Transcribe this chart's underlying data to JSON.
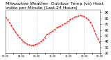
{
  "title": "Milwaukee Weather  Outdoor Temp (vs) Heat Index per Minute (Last 24 Hours)",
  "ylabel": "",
  "xlabel": "",
  "bg_color": "#ffffff",
  "plot_bg_color": "#ffffff",
  "grid_color": "#aaaaaa",
  "line_color": "#ff0000",
  "ylim": [
    20,
    95
  ],
  "xlim": [
    0,
    1440
  ],
  "yticks": [
    20,
    30,
    40,
    50,
    60,
    70,
    80,
    90
  ],
  "ytick_labels": [
    "20",
    "30",
    "40",
    "50",
    "60",
    "70",
    "80",
    "90"
  ],
  "title_fontsize": 4.5,
  "tick_fontsize": 3.5,
  "line_width": 0.6,
  "linestyle": "--",
  "vgrid_positions": [
    240,
    480,
    720,
    960,
    1200
  ],
  "data_x": [
    0,
    30,
    60,
    90,
    120,
    150,
    180,
    210,
    240,
    270,
    300,
    330,
    360,
    390,
    420,
    450,
    480,
    510,
    540,
    570,
    600,
    630,
    660,
    690,
    720,
    750,
    780,
    810,
    840,
    870,
    900,
    930,
    960,
    990,
    1020,
    1050,
    1080,
    1110,
    1140,
    1170,
    1200,
    1230,
    1260,
    1290,
    1320,
    1350,
    1380,
    1410,
    1440
  ],
  "data_y": [
    82,
    78,
    73,
    68,
    62,
    57,
    52,
    48,
    44,
    41,
    38,
    36,
    35,
    34,
    34,
    35,
    36,
    38,
    40,
    43,
    47,
    52,
    54,
    56,
    58,
    61,
    64,
    65,
    67,
    69,
    71,
    73,
    75,
    78,
    80,
    82,
    83,
    84,
    85,
    84,
    83,
    81,
    78,
    74,
    68,
    60,
    52,
    45,
    38
  ]
}
